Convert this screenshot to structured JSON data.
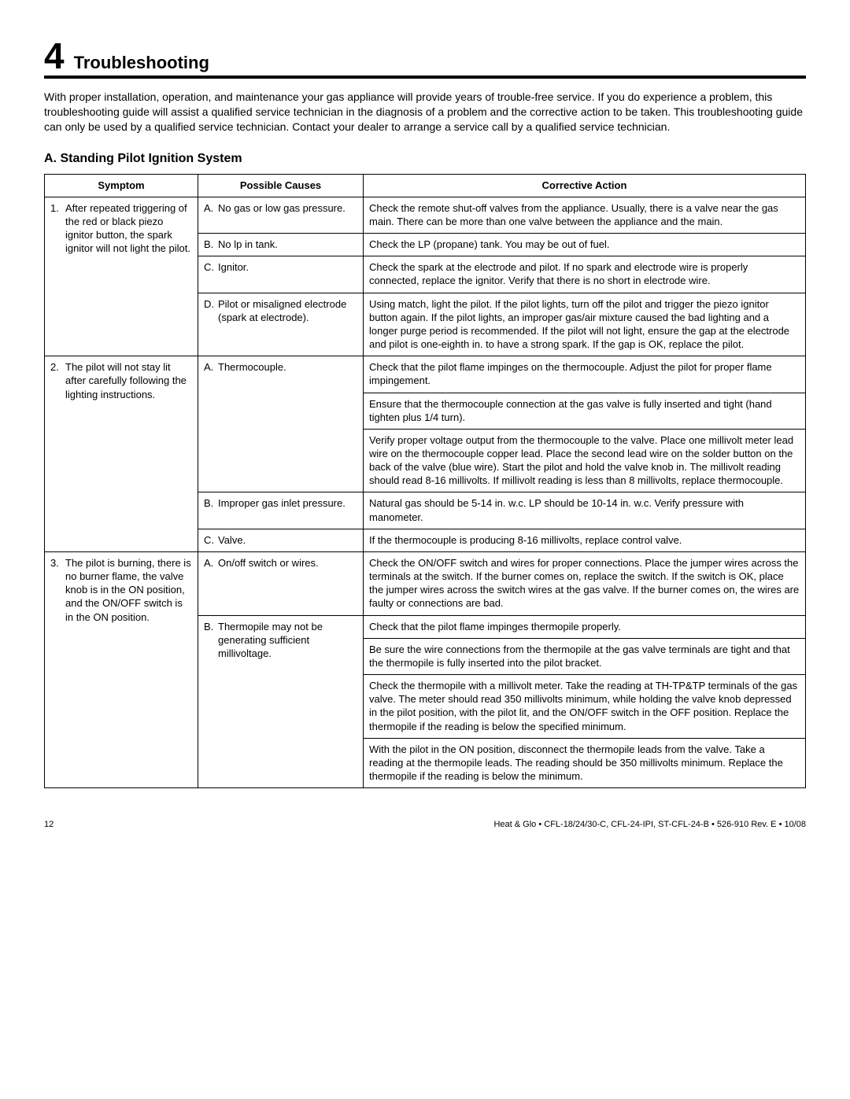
{
  "chapter": {
    "number": "4",
    "title": "Troubleshooting"
  },
  "intro": "With proper installation, operation, and maintenance your gas appliance will provide years of trouble-free service.  If you do experience a problem, this troubleshooting guide will assist a qualified service technician in the diagnosis of a problem and the corrective action to be taken. This troubleshooting guide can only be used by a qualified service technician.  Contact your dealer to arrange a service call by a qualified service technician.",
  "section_heading": "A.  Standing Pilot Ignition System",
  "table": {
    "headers": {
      "symptom": "Symptom",
      "causes": "Possible Causes",
      "action": "Corrective Action"
    },
    "symptoms": [
      {
        "num": "1.",
        "text": "After repeated triggering of the red or black piezo ignitor button, the spark ignitor will not light the pilot.",
        "causes": [
          {
            "letter": "A.",
            "text": "No gas or low gas pressure.",
            "actions": [
              "Check the remote shut-off valves from the appliance. Usually, there is a valve near the gas main. There can be more than one valve between the appliance and the main."
            ]
          },
          {
            "letter": "B.",
            "text": "No lp in tank.",
            "actions": [
              "Check the LP (propane) tank. You may be out of fuel."
            ]
          },
          {
            "letter": "C.",
            "text": "Ignitor.",
            "actions": [
              "Check the spark at the electrode and pilot. If no spark and electrode wire is properly connected, replace the ignitor.  Verify that there is no short in electrode wire."
            ]
          },
          {
            "letter": "D.",
            "text": "Pilot or misaligned electrode (spark at electrode).",
            "actions": [
              "Using match, light the pilot. If the pilot lights, turn off the pilot and trigger the piezo ignitor button again. If the pilot lights, an improper gas/air mixture caused the bad lighting and a longer purge period is recommended. If the pilot will not light, ensure the gap at the electrode and pilot is one-eighth in. to have a strong spark. If the gap is OK, replace the pilot."
            ]
          }
        ]
      },
      {
        "num": "2.",
        "text": "The pilot will not stay lit after carefully following the lighting instructions.",
        "causes": [
          {
            "letter": "A.",
            "text": "Thermocouple.",
            "actions": [
              "Check that the pilot flame impinges on the thermocouple. Adjust the pilot for proper flame impingement.",
              "Ensure that the thermocouple connection at the gas valve is fully inserted and tight (hand tighten plus 1/4 turn).",
              "Verify proper voltage output from the thermocouple to the valve. Place one millivolt meter lead wire on the thermocouple copper lead.  Place the second lead wire on the solder button on the back of the valve (blue wire).  Start the pilot and hold the valve knob in.  The millivolt reading should read 8-16 millivolts.  If millivolt reading is less than 8 millivolts, replace thermocouple."
            ]
          },
          {
            "letter": "B.",
            "text": "Improper gas inlet pressure.",
            "actions": [
              "Natural gas should be 5-14 in. w.c.  LP should be 10-14 in. w.c.  Verify pressure with manometer."
            ]
          },
          {
            "letter": "C.",
            "text": "Valve.",
            "actions": [
              "If the thermocouple is producing 8-16 millivolts, replace control valve."
            ]
          }
        ]
      },
      {
        "num": "3.",
        "text": "The pilot is burning, there is no burner flame, the valve knob is in the ON position, and the ON/OFF switch is in the ON position.",
        "causes": [
          {
            "letter": "A.",
            "text": "On/off switch or wires.",
            "actions": [
              "Check the ON/OFF switch and wires for proper connections. Place the jumper wires across the terminals at the switch. If the burner comes on, replace the switch. If the switch is OK, place the jumper wires across the switch wires at the gas valve. If the burner comes on, the wires are faulty or connections are bad."
            ]
          },
          {
            "letter": "B.",
            "text": "Thermopile may not be generating sufficient millivoltage.",
            "actions": [
              "Check that the pilot flame impinges thermopile properly.",
              "Be sure the wire connections from the thermopile at the gas valve terminals are tight and that the thermopile is fully inserted into the pilot bracket.",
              "Check the thermopile with a millivolt meter. Take the reading at TH-TP&TP terminals of the gas valve. The meter should read 350 millivolts minimum, while holding the valve knob depressed in the pilot position, with the pilot lit, and the ON/OFF switch in the OFF position. Replace the thermopile if the reading is below the specified minimum.",
              "With the pilot in the ON position, disconnect the thermopile leads from the valve. Take a reading at the thermopile leads. The reading should be 350 millivolts minimum. Replace the thermopile if the reading is below the minimum."
            ]
          }
        ]
      }
    ]
  },
  "footer": {
    "page": "12",
    "doc": "Heat & Glo  •  CFL-18/24/30-C, CFL-24-IPI, ST-CFL-24-B  •  526-910 Rev. E  •  10/08"
  }
}
